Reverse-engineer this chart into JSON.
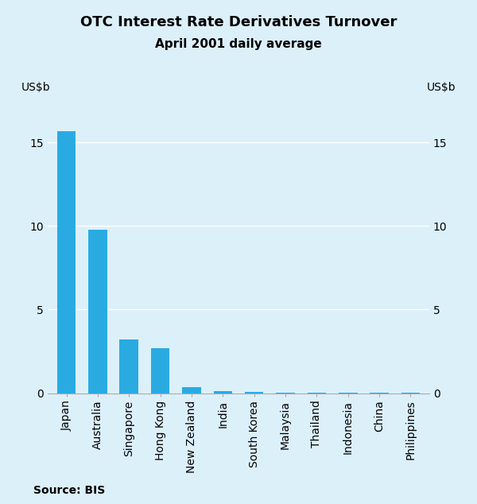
{
  "title": "OTC Interest Rate Derivatives Turnover",
  "subtitle": "April 2001 daily average",
  "ylabel_left": "US$b",
  "ylabel_right": "US$b",
  "source": "Source: BIS",
  "categories": [
    "Japan",
    "Australia",
    "Singapore",
    "Hong Kong",
    "New Zealand",
    "India",
    "South Korea",
    "Malaysia",
    "Thailand",
    "Indonesia",
    "China",
    "Philippines"
  ],
  "values": [
    15.7,
    9.8,
    3.2,
    2.7,
    0.35,
    0.12,
    0.08,
    0.03,
    0.02,
    0.02,
    0.02,
    0.01
  ],
  "bar_color": "#29ABE2",
  "background_color": "#DCF0FA",
  "ylim": [
    0,
    17.5
  ],
  "yticks": [
    0,
    5,
    10,
    15
  ],
  "grid_color": "#FFFFFF",
  "title_fontsize": 13,
  "subtitle_fontsize": 11,
  "tick_fontsize": 10,
  "source_fontsize": 10
}
